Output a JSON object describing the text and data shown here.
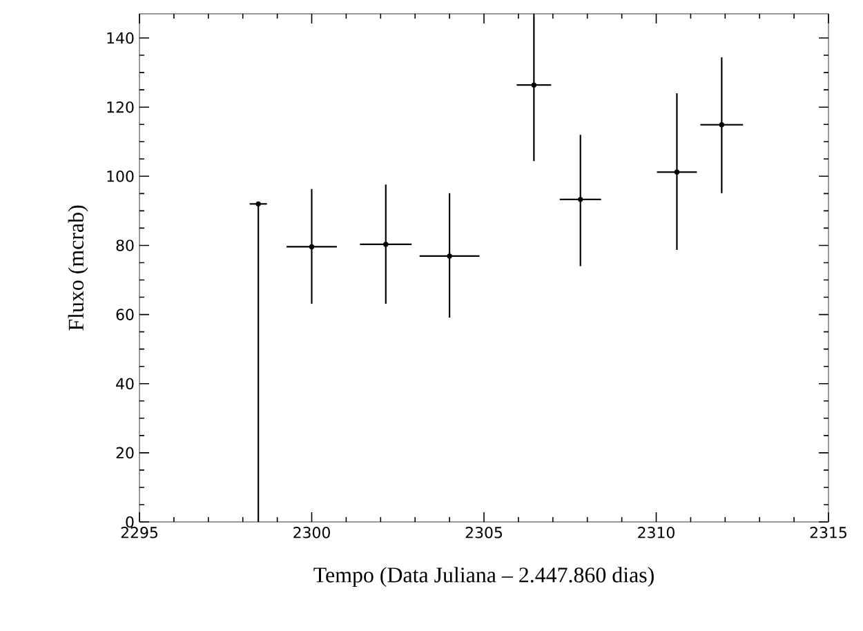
{
  "chart_data": {
    "type": "scatter",
    "xlabel": "Tempo (Data Juliana – 2.447.860 dias)",
    "ylabel": "Fluxo (mcrab)",
    "xlim": [
      2295,
      2315
    ],
    "xticks": [
      2295,
      2300,
      2305,
      2310,
      2315
    ],
    "ylim": [
      0,
      147
    ],
    "yticks": [
      0,
      20,
      40,
      60,
      80,
      100,
      120,
      140
    ],
    "grid": false,
    "marker": "circle",
    "series": [
      {
        "color": "#000000",
        "x": [
          2298.45,
          2300.0,
          2302.15,
          2304.0,
          2306.45,
          2307.8,
          2310.6,
          2311.9
        ],
        "values": [
          92,
          79.6,
          80.3,
          76.9,
          126.4,
          93.3,
          101.2,
          114.9
        ],
        "errors": [
          [
            0,
            92
          ],
          [
            63.1,
            96.3
          ],
          [
            63.1,
            97.6
          ],
          [
            59.1,
            95.1
          ],
          [
            104.4,
            147
          ],
          [
            74,
            112
          ],
          [
            78.7,
            124
          ],
          [
            95.1,
            134.4
          ]
        ],
        "xerrors": [
          0.25,
          0.73,
          0.75,
          0.87,
          0.5,
          0.6,
          0.58,
          0.62
        ]
      }
    ]
  }
}
